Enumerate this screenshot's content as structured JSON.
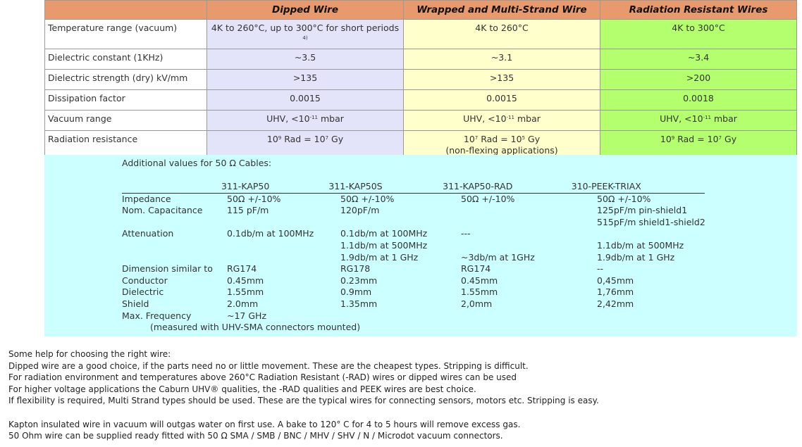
{
  "main_table": {
    "headers": [
      "",
      "Dipped Wire",
      "Wrapped and Multi-Strand Wire",
      "Radiation Resistant Wires"
    ],
    "colors": {
      "header": "#E99A6C",
      "dipped": "#E3E3FA",
      "wrapped": "#FFFFCC",
      "radiation": "#B4FF6E"
    },
    "rows": [
      {
        "label": "Temperature range (vacuum)",
        "cells": [
          {
            "text": "4K to 260°C, up to 300°C for short periods ",
            "sup": "4)",
            "tail": ""
          },
          {
            "text": "4K to 260°C"
          },
          {
            "text": "4K to 300°C"
          }
        ]
      },
      {
        "label": "Dielectric constant (1KHz)",
        "cells": [
          {
            "text": "~3.5"
          },
          {
            "text": "~3.1"
          },
          {
            "text": "~3.4"
          }
        ]
      },
      {
        "label": "Dielectric strength (dry) kV/mm",
        "cells": [
          {
            "text": ">135"
          },
          {
            "text": ">135"
          },
          {
            "text": ">200"
          }
        ]
      },
      {
        "label": "Dissipation factor",
        "cells": [
          {
            "text": "0.0015"
          },
          {
            "text": "0.0015"
          },
          {
            "text": "0.0018"
          }
        ]
      },
      {
        "label": "Vacuum range",
        "cells": [
          {
            "text": "UHV,  <10",
            "sup": "-11",
            "tail": " mbar"
          },
          {
            "text": "UHV,  <10",
            "sup": "-11",
            "tail": " mbar"
          },
          {
            "text": "UHV, <10",
            "sup": "-11",
            "tail": " mbar"
          }
        ]
      },
      {
        "label": "Radiation resistance",
        "cells": [
          {
            "text": "10",
            "sup": "9",
            "tail": " Rad = 10",
            "sup2": "7",
            "tail2": " Gy"
          },
          {
            "text": "10",
            "sup": "7",
            "tail": " Rad = 10",
            "sup2": "5",
            "tail2": " Gy",
            "line2": "(non-flexing applications)"
          },
          {
            "text": "10",
            "sup": "9",
            "tail": " Rad = 10",
            "sup2": "7",
            "tail2": " Gy"
          }
        ]
      }
    ]
  },
  "cables": {
    "title": "Additional values for 50 Ω Cables:",
    "background": "#CCFFFF",
    "models": [
      "311-KAP50",
      "311-KAP50S",
      "311-KAP50-RAD",
      "310-PEEK-TRIAX"
    ],
    "rows": [
      {
        "label": "Impedance",
        "cells": [
          "50Ω +/-10%",
          "50Ω +/-10%",
          "50Ω +/-10%",
          "50Ω +/-10%"
        ]
      },
      {
        "label": "Nom. Capacitance",
        "cells": [
          "115 pF/m",
          "120pF/m",
          "",
          "125pF/m pin-shield1\n515pF/m shield1-shield2"
        ]
      },
      {
        "label": "Attenuation",
        "cells": [
          "0.1db/m at 100MHz",
          "0.1db/m at 100MHz\n1.1db/m at 500MHz\n1.9db/m at 1 GHz",
          "---\n\n~3db/m at 1GHz",
          "\n1.1db/m at 500MHz\n1.9db/m at 1 GHz"
        ]
      },
      {
        "label": "Dimension similar to",
        "cells": [
          "RG174",
          "RG178",
          "RG174",
          "--"
        ]
      },
      {
        "label": "Conductor",
        "cells": [
          "0.45mm",
          "0.23mm",
          "0.45mm",
          "0,45mm"
        ]
      },
      {
        "label": "Dielectric",
        "cells": [
          "1.55mm",
          "0.9mm",
          "1.55mm",
          "1,76mm"
        ]
      },
      {
        "label": "Shield",
        "cells": [
          "2.0mm",
          "1.35mm",
          "2,0mm",
          "2,42mm"
        ]
      },
      {
        "label": "Max. Frequency",
        "cells": [
          "~17 GHz",
          "",
          "",
          ""
        ]
      }
    ],
    "note": "(measured with UHV-SMA connectors mounted)"
  },
  "help": [
    "Some help for choosing the right wire:",
    "Dipped wire are a good choice, if the parts need no or little movement. These are the cheapest types. Stripping is difficult.",
    "For radiation environment and temperatures above 260°C Radiation Resistant (-RAD) wires or dipped wires can be used",
    "For higher voltage applications the Caburn UHV® qualities, the -RAD qualities and PEEK wires are best choice.",
    "If flexibility is required, Multi Strand types should be used. These are the typical wires for connecting sensors, motors etc. Stripping is easy.",
    "",
    "Kapton insulated wire in vacuum will outgas water on first use. A bake to 120° C for 4 to 5 hours will remove excess gas.",
    "50 Ohm wire can be supplied ready fitted with 50 Ω SMA / SMB / BNC / MHV / SHV / N / Microdot vacuum connectors."
  ]
}
